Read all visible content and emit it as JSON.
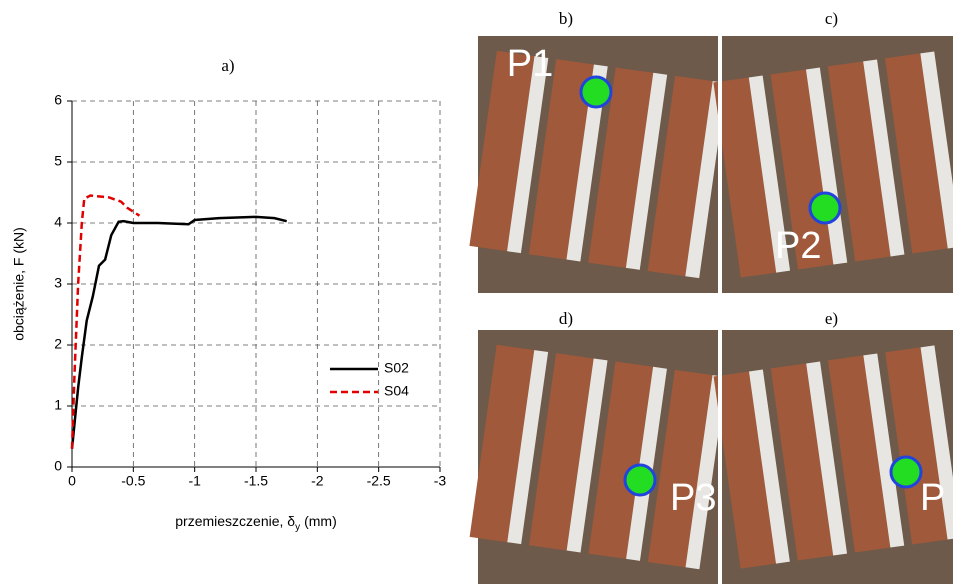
{
  "chart_data": {
    "type": "line",
    "title": "a)",
    "x_label": {
      "text": "przemieszczenie, δ",
      "sub": "y",
      "unit": "(mm)"
    },
    "y_label": "obciążenie, F (kN)",
    "xlim": [
      0,
      -3
    ],
    "xticks": [
      0,
      -0.5,
      -1,
      -1.5,
      -2,
      -2.5,
      -3
    ],
    "ylim": [
      0,
      6
    ],
    "yticks": [
      0,
      1,
      2,
      3,
      4,
      5,
      6
    ],
    "grid": true,
    "series": [
      {
        "name": "S02",
        "color": "#000000",
        "dash": "solid",
        "x": [
          0,
          -0.02,
          -0.05,
          -0.08,
          -0.12,
          -0.17,
          -0.22,
          -0.27,
          -0.32,
          -0.38,
          -0.42,
          -0.5,
          -0.7,
          -0.95,
          -1.0,
          -1.2,
          -1.5,
          -1.65,
          -1.75
        ],
        "values": [
          0.3,
          0.7,
          1.3,
          1.8,
          2.4,
          2.8,
          3.3,
          3.4,
          3.8,
          4.02,
          4.03,
          4.0,
          4.0,
          3.98,
          4.05,
          4.08,
          4.1,
          4.08,
          4.03
        ]
      },
      {
        "name": "S04",
        "color": "#e00000",
        "dash": "dashed",
        "x": [
          0,
          -0.02,
          -0.05,
          -0.08,
          -0.1,
          -0.15,
          -0.3,
          -0.4,
          -0.45,
          -0.55
        ],
        "values": [
          0.3,
          1.5,
          3.0,
          4.0,
          4.4,
          4.45,
          4.42,
          4.35,
          4.25,
          4.12
        ]
      }
    ]
  },
  "photos": [
    {
      "label": "b)",
      "point": "P1"
    },
    {
      "label": "c)",
      "point": "P2"
    },
    {
      "label": "d)",
      "point": "P3"
    },
    {
      "label": "e)",
      "point": "P"
    }
  ]
}
